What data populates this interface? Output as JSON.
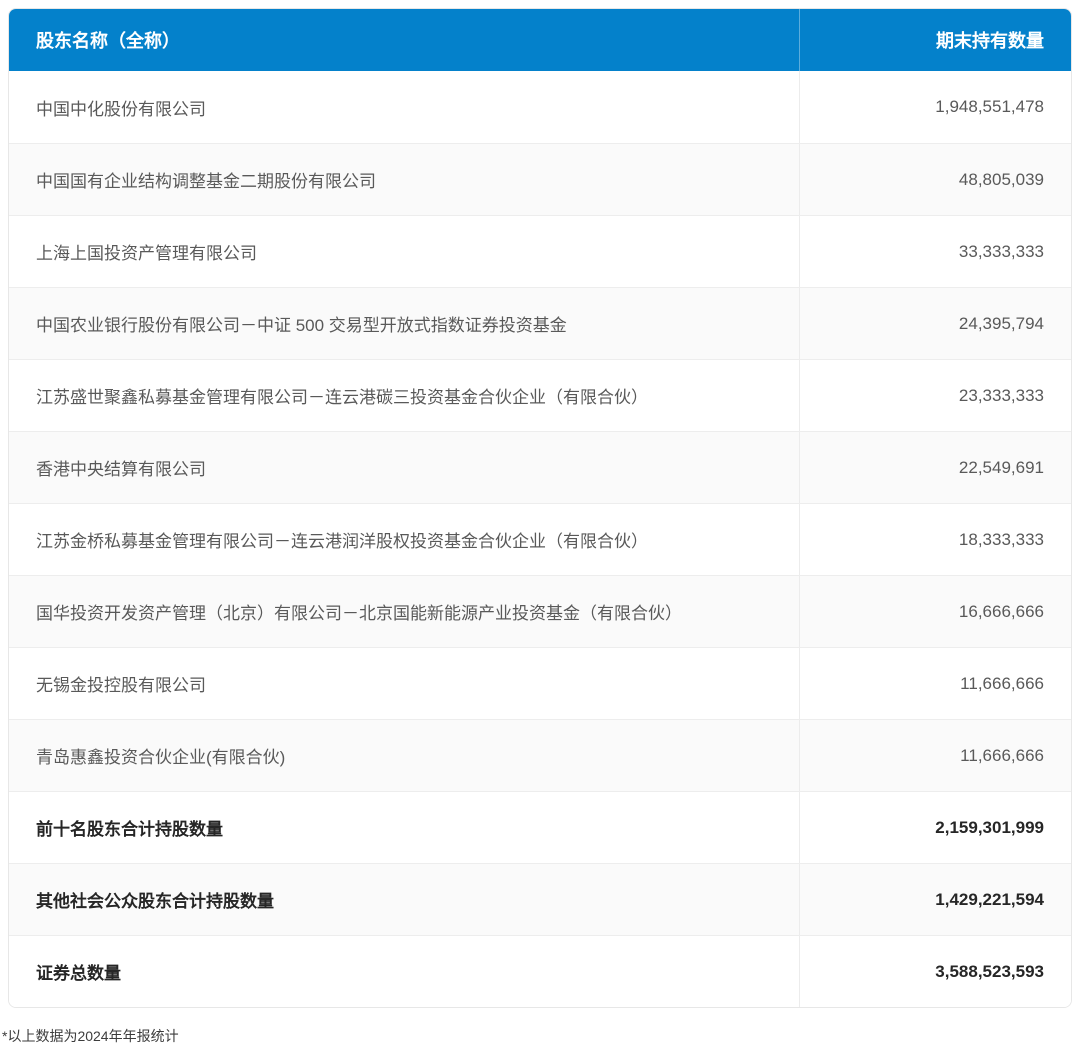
{
  "table": {
    "columns": {
      "name_label": "股东名称（全称）",
      "value_label": "期末持有数量"
    },
    "rows": [
      {
        "name": "中国中化股份有限公司",
        "value": "1,948,551,478"
      },
      {
        "name": "中国国有企业结构调整基金二期股份有限公司",
        "value": "48,805,039"
      },
      {
        "name": "上海上国投资产管理有限公司",
        "value": "33,333,333"
      },
      {
        "name": "中国农业银行股份有限公司－中证 500 交易型开放式指数证券投资基金",
        "value": "24,395,794"
      },
      {
        "name": "江苏盛世聚鑫私募基金管理有限公司－连云港碳三投资基金合伙企业（有限合伙）",
        "value": "23,333,333"
      },
      {
        "name": "香港中央结算有限公司",
        "value": "22,549,691"
      },
      {
        "name": "江苏金桥私募基金管理有限公司－连云港润洋股权投资基金合伙企业（有限合伙）",
        "value": "18,333,333"
      },
      {
        "name": "国华投资开发资产管理（北京）有限公司－北京国能新能源产业投资基金（有限合伙）",
        "value": "16,666,666"
      },
      {
        "name": "无锡金投控股有限公司",
        "value": "11,666,666"
      },
      {
        "name": "青岛惠鑫投资合伙企业(有限合伙)",
        "value": "11,666,666"
      }
    ],
    "summary_rows": [
      {
        "label": "前十名股东合计持股数量",
        "value": "2,159,301,999"
      },
      {
        "label": "其他社会公众股东合计持股数量",
        "value": "1,429,221,594"
      },
      {
        "label": "证券总数量",
        "value": "3,588,523,593"
      }
    ]
  },
  "footnote": "*以上数据为2024年年报统计",
  "colors": {
    "header_bg": "#0481cb",
    "header_text": "#ffffff",
    "row_stripe": "#fafafa",
    "row_border": "#ededed",
    "body_text": "#595959",
    "total_text": "#262626"
  },
  "chart_data": {
    "type": "table",
    "columns": [
      "股东名称（全称）",
      "期末持有数量"
    ],
    "rows": [
      [
        "中国中化股份有限公司",
        1948551478
      ],
      [
        "中国国有企业结构调整基金二期股份有限公司",
        48805039
      ],
      [
        "上海上国投资产管理有限公司",
        33333333
      ],
      [
        "中国农业银行股份有限公司－中证 500 交易型开放式指数证券投资基金",
        24395794
      ],
      [
        "江苏盛世聚鑫私募基金管理有限公司－连云港碳三投资基金合伙企业（有限合伙）",
        23333333
      ],
      [
        "香港中央结算有限公司",
        22549691
      ],
      [
        "江苏金桥私募基金管理有限公司－连云港润洋股权投资基金合伙企业（有限合伙）",
        18333333
      ],
      [
        "国华投资开发资产管理（北京）有限公司－北京国能新能源产业投资基金（有限合伙）",
        16666666
      ],
      [
        "无锡金投控股有限公司",
        11666666
      ],
      [
        "青岛惠鑫投资合伙企业(有限合伙)",
        11666666
      ]
    ],
    "summary": [
      [
        "前十名股东合计持股数量",
        2159301999
      ],
      [
        "其他社会公众股东合计持股数量",
        1429221594
      ],
      [
        "证券总数量",
        3588523593
      ]
    ],
    "footnote": "*以上数据为2024年年报统计"
  }
}
